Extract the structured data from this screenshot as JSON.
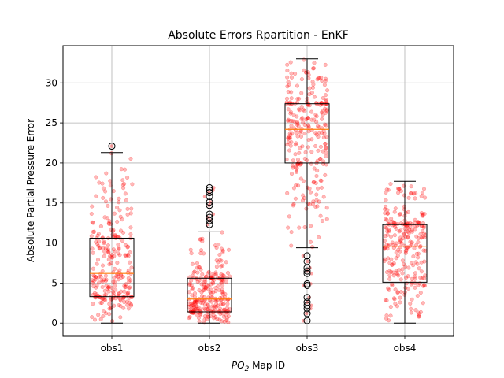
{
  "chart_data": {
    "type": "box",
    "title": "Absolute Errors Rpartition - EnKF",
    "xlabel_italic": "PO",
    "xlabel_sub": "2",
    "xlabel_rest": " Map ID",
    "ylabel": "Absolute Partial Pressure Error",
    "ylim": [
      -1.65,
      34.65
    ],
    "yticks": [
      0,
      5,
      10,
      15,
      20,
      25,
      30
    ],
    "grid": true,
    "categories": [
      "obs1",
      "obs2",
      "obs3",
      "obs4"
    ],
    "boxes": [
      {
        "name": "obs1",
        "whisker_low": 0.0,
        "q1": 3.3,
        "median": 6.2,
        "q3": 10.6,
        "whisker_high": 21.3,
        "outliers": [
          22.1
        ]
      },
      {
        "name": "obs2",
        "whisker_low": 0.0,
        "q1": 1.4,
        "median": 3.0,
        "q3": 5.6,
        "whisker_high": 11.4,
        "outliers": [
          12.3,
          12.8,
          13.2,
          13.6,
          14.7,
          15.1,
          15.8,
          16.3,
          16.6,
          16.9
        ]
      },
      {
        "name": "obs3",
        "whisker_low": 9.4,
        "q1": 20.0,
        "median": 24.2,
        "q3": 27.4,
        "whisker_high": 33.0,
        "outliers": [
          0.3,
          1.2,
          1.8,
          2.2,
          2.6,
          3.2,
          4.7,
          4.9,
          6.2,
          6.5,
          6.9,
          7.7,
          8.4
        ]
      },
      {
        "name": "obs4",
        "whisker_low": 0.0,
        "q1": 5.1,
        "median": 9.6,
        "q3": 12.3,
        "whisker_high": 17.7,
        "outliers": []
      }
    ],
    "colors": {
      "box": "#000000",
      "median": "#ff7f0e",
      "points": "#ff0000",
      "grid": "#b0b0b0"
    }
  }
}
